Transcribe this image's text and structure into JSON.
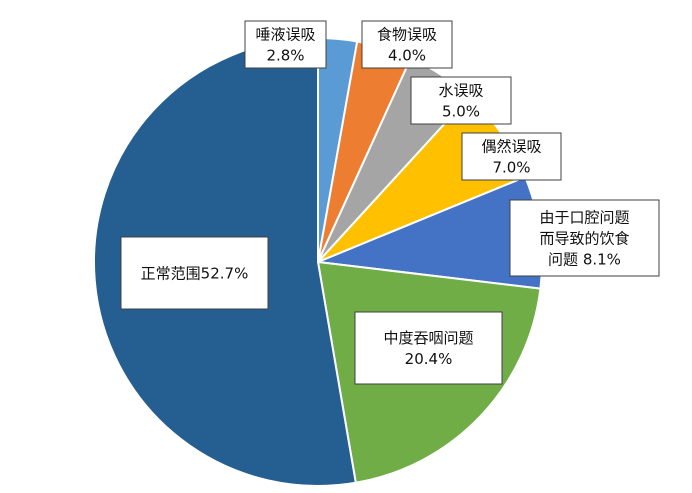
{
  "chart_data": {
    "type": "pie",
    "title": "",
    "legend": "none",
    "slices": [
      {
        "label": "唾液误吸",
        "value": 2.8,
        "color": "#5b9bd5",
        "display_lines": [
          "唾液误吸",
          "2.8%"
        ]
      },
      {
        "label": "食物误吸",
        "value": 4.0,
        "color": "#ed7d31",
        "display_lines": [
          "食物误吸",
          "4.0%"
        ]
      },
      {
        "label": "水误吸",
        "value": 5.0,
        "color": "#a5a5a5",
        "display_lines": [
          "水误吸",
          "5.0%"
        ]
      },
      {
        "label": "偶然误吸",
        "value": 7.0,
        "color": "#ffc000",
        "display_lines": [
          "偶然误吸",
          "7.0%"
        ]
      },
      {
        "label": "由于口腔问题而导致的饮食问题",
        "value": 8.1,
        "color": "#4472c4",
        "display_lines": [
          "由于口腔问题",
          "而导致的饮食",
          "问题 8.1%"
        ]
      },
      {
        "label": "中度吞咽问题",
        "value": 20.4,
        "color": "#70ad47",
        "display_lines": [
          "中度吞咽问题",
          "20.4%"
        ]
      },
      {
        "label": "正常范围",
        "value": 52.7,
        "color": "#255e91",
        "display_lines": [
          "正常范围52.7%"
        ]
      }
    ]
  }
}
